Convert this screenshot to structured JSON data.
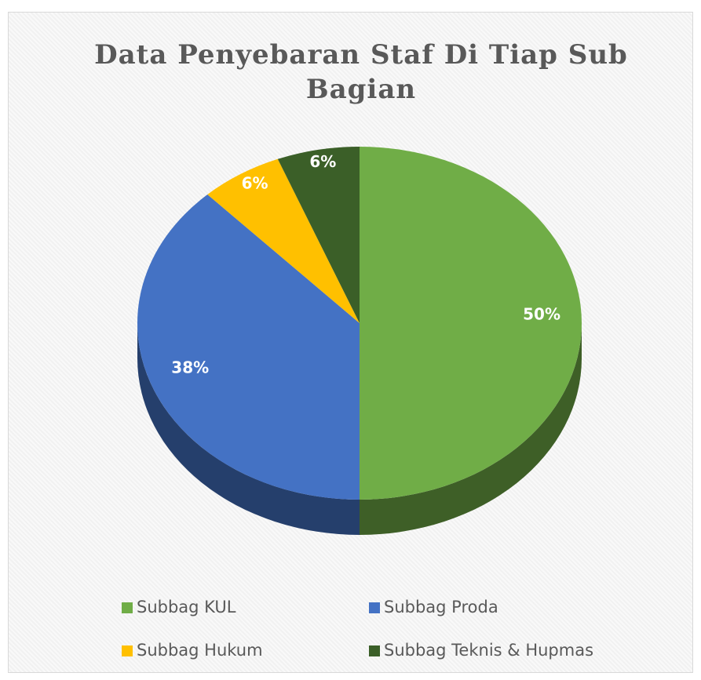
{
  "chart_data": {
    "type": "pie",
    "title": "Data Penyebaran Staf Di Tiap Sub Bagian",
    "categories": [
      "Subbag KUL",
      "Subbag Proda",
      "Subbag Hukum",
      "Subbag Teknis & Hupmas"
    ],
    "values": [
      50,
      38,
      6,
      6
    ],
    "value_labels": [
      "50%",
      "38%",
      "6%",
      "6%"
    ],
    "colors": [
      "#70ad47",
      "#4472c4",
      "#ffc000",
      "#3b5f28"
    ],
    "legend": "bottom"
  }
}
